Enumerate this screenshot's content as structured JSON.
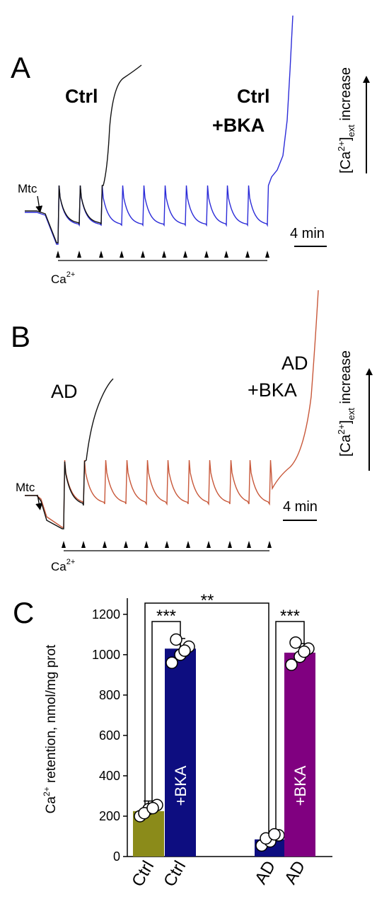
{
  "panel_a": {
    "letter": "A",
    "ctrl": "Ctrl",
    "ctrl_bka": [
      "Ctrl",
      "+BKA"
    ],
    "mtc": "Mtc",
    "ca": {
      "base": "Ca",
      "sup": "2+"
    },
    "scale": "4 min",
    "side": {
      "open": "[Ca",
      "sup": "2+",
      "close": "]",
      "sub": "ext",
      "rest": " increase"
    }
  },
  "panel_b": {
    "letter": "B",
    "ad": "AD",
    "ad_bka": [
      "AD",
      "+BKA"
    ],
    "mtc": "Mtc",
    "ca": {
      "base": "Ca",
      "sup": "2+"
    },
    "scale": "4 min",
    "side": {
      "open": "[Ca",
      "sup": "2+",
      "close": "]",
      "sub": "ext",
      "rest": " increase"
    }
  },
  "chart_data": {
    "type": "bar",
    "letter": "C",
    "y_label": {
      "base": "Ca",
      "sup": "2+",
      "rest": " retention, nmol/mg prot"
    },
    "categories": [
      "Ctrl",
      "Ctrl",
      "AD",
      "AD"
    ],
    "inner_labels": [
      null,
      "+BKA",
      null,
      "+BKA"
    ],
    "values": [
      225,
      1030,
      85,
      1010
    ],
    "errors": [
      50,
      50,
      30,
      45
    ],
    "colors": [
      "#8b8b1a",
      "#0d0d80",
      "#0d0d80",
      "#800080"
    ],
    "points": [
      [
        200,
        235,
        255,
        215,
        240
      ],
      [
        960,
        1000,
        1040,
        1075,
        1020
      ],
      [
        55,
        75,
        105,
        90,
        110
      ],
      [
        950,
        990,
        1030,
        1060,
        1015
      ]
    ],
    "ylim": [
      0,
      1280
    ],
    "yticks": [
      0,
      200,
      400,
      600,
      800,
      1000,
      1200
    ],
    "significance": [
      "***",
      "**",
      "***"
    ]
  }
}
